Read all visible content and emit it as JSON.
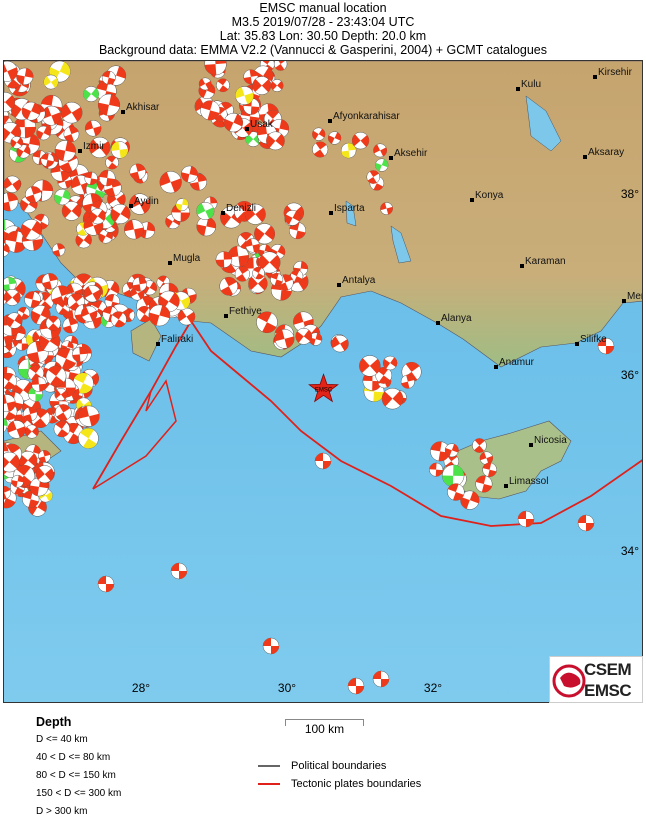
{
  "header": {
    "title": "EMSC manual location",
    "event": "M3.5  2019/07/28 - 23:43:04 UTC",
    "location": "Lat: 35.83    Lon:  30.50      Depth:  20.0 km",
    "background": "Background data: EMMA V2.2 (Vannucci & Gasperini, 2004) + GCMT catalogues"
  },
  "map": {
    "epicenter_label": "EMSC",
    "epicenter": {
      "lat": 35.83,
      "lon": 30.5,
      "depth_km": 20.0,
      "magnitude": 3.5
    },
    "lon_ticks": [
      "28°",
      "30°",
      "32°"
    ],
    "lat_ticks": [
      "38°",
      "36°",
      "34°"
    ],
    "cities": [
      "Akhisar",
      "Usak",
      "Afyonkarahisar",
      "Kulu",
      "Kirsehir",
      "Izmir",
      "Aksehir",
      "Aksaray",
      "Aydin",
      "Denizli",
      "Isparta",
      "Konya",
      "Mugla",
      "Karaman",
      "Antalya",
      "Fethiye",
      "Alanya",
      "Mer",
      "Silifke",
      "Faliraki",
      "Anamur",
      "Nicosia",
      "Limassol"
    ],
    "colors": {
      "sea": "#7cc7ea",
      "land": "#c9aa74",
      "plate_boundary": "#e0201a",
      "mechanism_shallow": "#ee3a1a",
      "mechanism_40_80": "#f5e619",
      "mechanism_80_150": "#4de14a",
      "epicenter": "#e02418"
    }
  },
  "logo": {
    "line1": "CSEM",
    "line2": "EMSC"
  },
  "scale": {
    "label": "100 km"
  },
  "legend": {
    "depth_title": "Depth",
    "depth_classes": [
      "D <= 40 km",
      "40 < D <= 80 km",
      "80 < D <= 150 km",
      "150 < D <= 300 km",
      "D > 300 km"
    ],
    "lines": [
      {
        "label": "Political boundaries",
        "color": "#666666"
      },
      {
        "label": "Tectonic plates boundaries",
        "color": "#e0201a"
      }
    ]
  }
}
